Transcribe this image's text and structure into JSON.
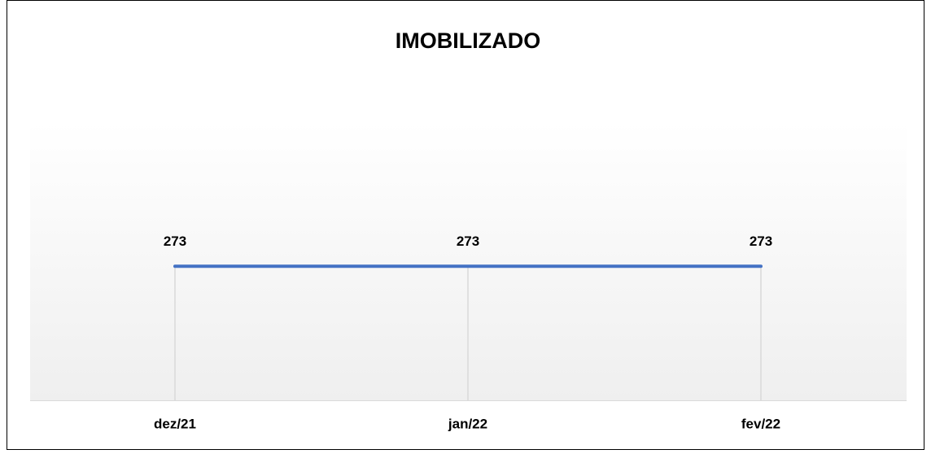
{
  "chart_data": {
    "type": "line",
    "title": "IMOBILIZADO",
    "categories": [
      "dez/21",
      "jan/22",
      "fev/22"
    ],
    "series": [
      {
        "name": "IMOBILIZADO",
        "color": "#4472c4",
        "values": [
          273,
          273,
          273
        ]
      }
    ],
    "ylim": [
      0,
      600
    ],
    "drop_lines": true
  }
}
